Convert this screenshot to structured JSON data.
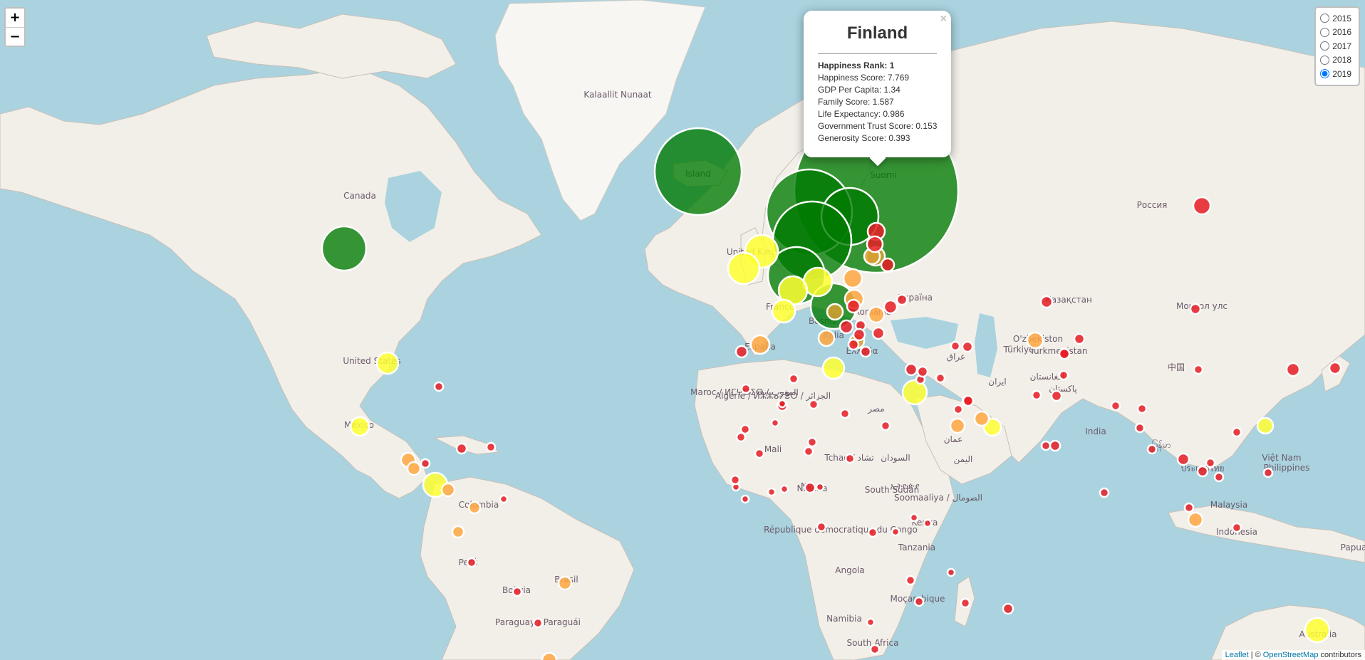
{
  "zoom": {
    "in_label": "+",
    "out_label": "−"
  },
  "layers": {
    "options": [
      "2015",
      "2016",
      "2017",
      "2018",
      "2019"
    ],
    "selected": "2019"
  },
  "popup": {
    "title": "Finland",
    "rows": [
      "Happiness Rank: 1",
      "Happiness Score: 7.769",
      "GDP Per Capita: 1.34",
      "Family Score: 1.587",
      "Life Expectancy: 0.986",
      "Government Trust Score: 0.153",
      "Generosity Score: 0.393"
    ],
    "close_label": "×"
  },
  "attribution": {
    "leaflet": "Leaflet",
    "separator": "| ©",
    "osm": "OpenStreetMap",
    "suffix": "contributors"
  },
  "colors": {
    "water": "#aad3df",
    "land": "#f2efe9",
    "top": "#007a00",
    "high": "#ffff33",
    "mid": "#ffa640",
    "low": "#e81c24"
  },
  "place_labels": [
    "Kalaallit Nunaat",
    "Canada",
    "United States",
    "México",
    "Island",
    "Suomi",
    "Россия",
    "Монгол улс",
    "Қазақстан",
    "O'zbekiston",
    "Turkmenistan",
    "Türkiye",
    "Україна",
    "España",
    "France",
    "Italia",
    "Maroc / ⵍⵎⵖⵔⵉⴱ / المغرب",
    "Algérie / ⵍⵣⵣⴰⵢⴻⵔ / الجزائر",
    "Mali",
    "Niger",
    "Tchad / تشاد",
    "مصر",
    "السودان",
    "South Sudan",
    "Nigeria",
    "Soomaaliya / الصومال",
    "Kenya",
    "Tanzania",
    "République démocratique du Congo",
    "Angola",
    "Namibia",
    "South Africa",
    "Moçambique",
    "Colombia",
    "Brasil",
    "Perú",
    "Bolivia",
    "Paraguay / Paraguái",
    "India",
    "中国",
    "Việt Nam",
    "Philippines",
    "Malaysia",
    "Indonesia",
    "Australia",
    "Papua",
    "عمان",
    "افغانستان",
    "پاکستان",
    "عراق",
    "ایران",
    "ኢትዮጵያ",
    "الیمن",
    "မြန်မာ",
    "ประเทศไทย",
    "United Kingdom",
    "Bosnia",
    "Românía",
    "Ελλάδα"
  ]
}
